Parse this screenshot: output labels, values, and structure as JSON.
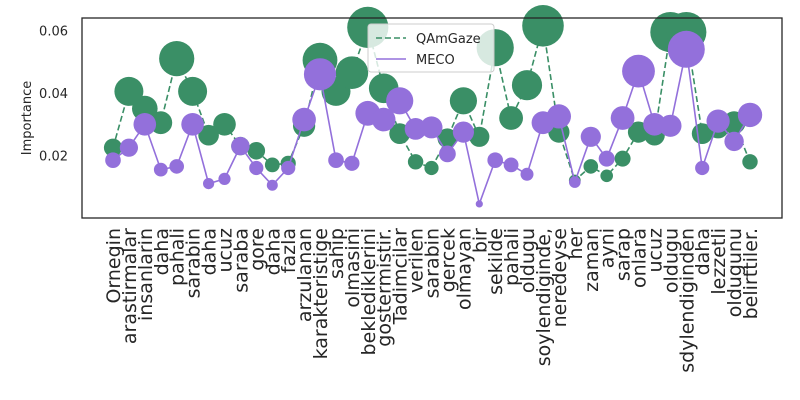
{
  "chart_data": {
    "type": "line",
    "ylabel": "Importance",
    "xlabel": "",
    "ylim": [
      0.0,
      0.064
    ],
    "yticks": [
      0.02,
      0.04,
      0.06
    ],
    "yticklabels": [
      "0.02",
      "0.04",
      "0.06"
    ],
    "grid": false,
    "legend_position": "top-center",
    "colors": {
      "QAmGaze": "#3a8f66",
      "MECO": "#9370db"
    },
    "categories": [
      "Ornegin",
      "arastirmalar",
      "insanlarin",
      "daha",
      "pahali",
      "sarabin",
      "daha",
      "ucuz",
      "saraba",
      "gore",
      "daha",
      "fazla",
      "arzulanan",
      "karakteristige",
      "sahip",
      "olmasini",
      "beklediklerini",
      "gostermistir.",
      "Tadimcilar",
      "verilen",
      "sarabin",
      "gercek",
      "olmayan",
      "bir",
      "sekilde",
      "pahali",
      "oldugu",
      "soylendiginde,",
      "neredeyse",
      "her",
      "zaman",
      "ayni",
      "sarap",
      "onlara",
      "ucuz",
      "oldugu",
      "sdylendiginden",
      "daha",
      "lezzetli",
      "oldugunu",
      "belirttiler."
    ],
    "series": [
      {
        "name": "QAmGaze",
        "style": "dashed",
        "values": [
          0.0225,
          0.0405,
          0.035,
          0.0305,
          0.051,
          0.0405,
          0.0265,
          0.03,
          0.023,
          0.0215,
          0.017,
          0.0175,
          0.0295,
          0.0505,
          0.0405,
          0.0465,
          0.061,
          0.0415,
          0.027,
          0.018,
          0.016,
          0.0255,
          0.0375,
          0.026,
          0.0545,
          0.032,
          0.0425,
          0.0615,
          0.0275,
          0.012,
          0.0165,
          0.0135,
          0.019,
          0.0275,
          0.0265,
          0.0595,
          0.0595,
          0.027,
          0.029,
          0.0305,
          0.018
        ]
      },
      {
        "name": "MECO",
        "style": "solid",
        "values": [
          0.0185,
          0.0225,
          0.03,
          0.0155,
          0.0165,
          0.03,
          0.011,
          0.0125,
          0.023,
          0.016,
          0.0105,
          0.016,
          0.0315,
          0.046,
          0.0185,
          0.0175,
          0.0335,
          0.0315,
          0.0375,
          0.0285,
          0.029,
          0.0205,
          0.0275,
          0.0045,
          0.0185,
          0.017,
          0.014,
          0.0305,
          0.0325,
          0.0115,
          0.026,
          0.019,
          0.032,
          0.047,
          0.03,
          0.0295,
          0.054,
          0.016,
          0.031,
          0.0245,
          0.033
        ]
      }
    ]
  }
}
